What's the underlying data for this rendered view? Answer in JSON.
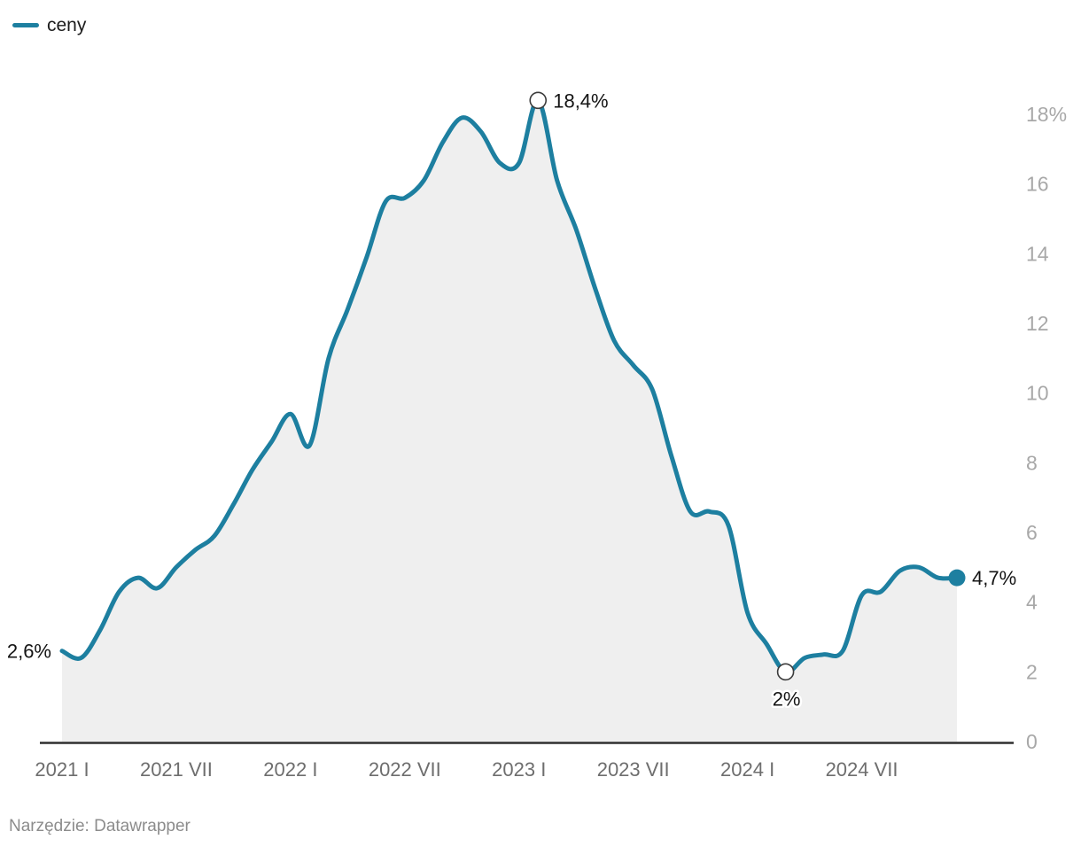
{
  "legend": {
    "label": "ceny",
    "color": "#1d7fa0"
  },
  "footer": {
    "text": "Narzędzie: Datawrapper"
  },
  "chart_data": {
    "type": "area",
    "title": "",
    "xlabel": "",
    "ylabel": "",
    "unit": "%",
    "grid": false,
    "legend_position": "top-left",
    "y_axis_side": "right",
    "ylim": [
      0,
      18.4
    ],
    "line_color": "#1d7fa0",
    "area_color": "#efefef",
    "axis_color": "#2f2f2f",
    "y_tick_color": "#a8a8a8",
    "x_tick_color": "#6e6e6e",
    "annotation_color": "#141414",
    "series": [
      {
        "name": "ceny",
        "values": [
          2.6,
          2.4,
          3.2,
          4.3,
          4.7,
          4.4,
          5.0,
          5.5,
          5.9,
          6.8,
          7.8,
          8.6,
          9.4,
          8.5,
          11.0,
          12.4,
          13.9,
          15.5,
          15.6,
          16.1,
          17.2,
          17.9,
          17.5,
          16.6,
          16.6,
          18.4,
          16.1,
          14.7,
          13.0,
          11.5,
          10.8,
          10.1,
          8.2,
          6.6,
          6.6,
          6.2,
          3.7,
          2.8,
          2.0,
          2.4,
          2.5,
          2.6,
          4.2,
          4.3,
          4.9,
          5.0,
          4.7,
          4.7
        ]
      }
    ],
    "categories": [
      "2021 I",
      "2021 II",
      "2021 III",
      "2021 IV",
      "2021 V",
      "2021 VI",
      "2021 VII",
      "2021 VIII",
      "2021 IX",
      "2021 X",
      "2021 XI",
      "2021 XII",
      "2022 I",
      "2022 II",
      "2022 III",
      "2022 IV",
      "2022 V",
      "2022 VI",
      "2022 VII",
      "2022 VIII",
      "2022 IX",
      "2022 X",
      "2022 XI",
      "2022 XII",
      "2023 I",
      "2023 II",
      "2023 III",
      "2023 IV",
      "2023 V",
      "2023 VI",
      "2023 VII",
      "2023 VIII",
      "2023 IX",
      "2023 X",
      "2023 XI",
      "2023 XII",
      "2024 I",
      "2024 II",
      "2024 III",
      "2024 IV",
      "2024 V",
      "2024 VI",
      "2024 VII",
      "2024 VIII",
      "2024 IX",
      "2024 X",
      "2024 XI",
      "2024 XII"
    ],
    "x_ticks": [
      {
        "month_index": 0,
        "label": "2021 I"
      },
      {
        "month_index": 6,
        "label": "2021 VII"
      },
      {
        "month_index": 12,
        "label": "2022 I"
      },
      {
        "month_index": 18,
        "label": "2022 VII"
      },
      {
        "month_index": 24,
        "label": "2023 I"
      },
      {
        "month_index": 30,
        "label": "2023 VII"
      },
      {
        "month_index": 36,
        "label": "2024 I"
      },
      {
        "month_index": 42,
        "label": "2024 VII"
      }
    ],
    "y_ticks": [
      {
        "value": 0,
        "label": "0"
      },
      {
        "value": 2,
        "label": "2"
      },
      {
        "value": 4,
        "label": "4"
      },
      {
        "value": 6,
        "label": "6"
      },
      {
        "value": 8,
        "label": "8"
      },
      {
        "value": 10,
        "label": "10"
      },
      {
        "value": 12,
        "label": "12"
      },
      {
        "value": 14,
        "label": "14"
      },
      {
        "value": 16,
        "label": "16"
      },
      {
        "value": 18,
        "label": "18%"
      }
    ],
    "annotations": [
      {
        "text": "2,6%",
        "month_index": 0,
        "value": 2.6,
        "marker": "none",
        "placement": "left",
        "name": "annotation-start-value"
      },
      {
        "text": "18,4%",
        "month_index": 25,
        "value": 18.4,
        "marker": "open-circle",
        "placement": "right",
        "name": "annotation-peak-value"
      },
      {
        "text": "2%",
        "month_index": 38,
        "value": 2.0,
        "marker": "open-circle",
        "placement": "below",
        "name": "annotation-trough-value"
      },
      {
        "text": "4,7%",
        "month_index": 47,
        "value": 4.7,
        "marker": "filled-dot",
        "placement": "right",
        "name": "annotation-latest-value"
      }
    ]
  }
}
